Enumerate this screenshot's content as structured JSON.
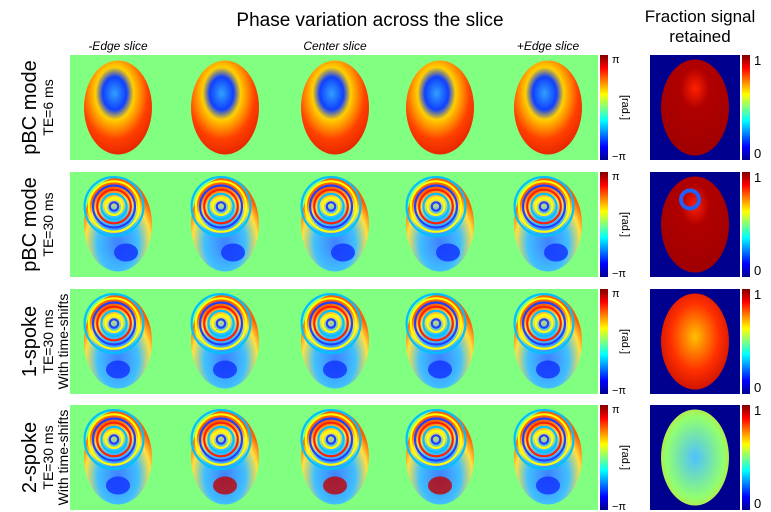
{
  "header": {
    "title": "Phase variation across the slice",
    "side_title": [
      "Fraction signal",
      "retained"
    ]
  },
  "columns": [
    "-Edge slice",
    "Center slice",
    "+Edge slice"
  ],
  "colorbar": {
    "phase_labels": [
      "π",
      "[rad.]",
      "−π"
    ],
    "fraction_labels": [
      "1",
      "0"
    ]
  },
  "rows": [
    {
      "mode": "pBC mode",
      "lines": [
        "TE=6 ms"
      ]
    },
    {
      "mode": "pBC mode",
      "lines": [
        "TE=30 ms"
      ]
    },
    {
      "mode": "1-spoke",
      "lines": [
        "TE=30 ms",
        "With time-shifts"
      ]
    },
    {
      "mode": "2-spoke",
      "lines": [
        "TE=30 ms",
        "With time-shifts"
      ]
    }
  ]
}
